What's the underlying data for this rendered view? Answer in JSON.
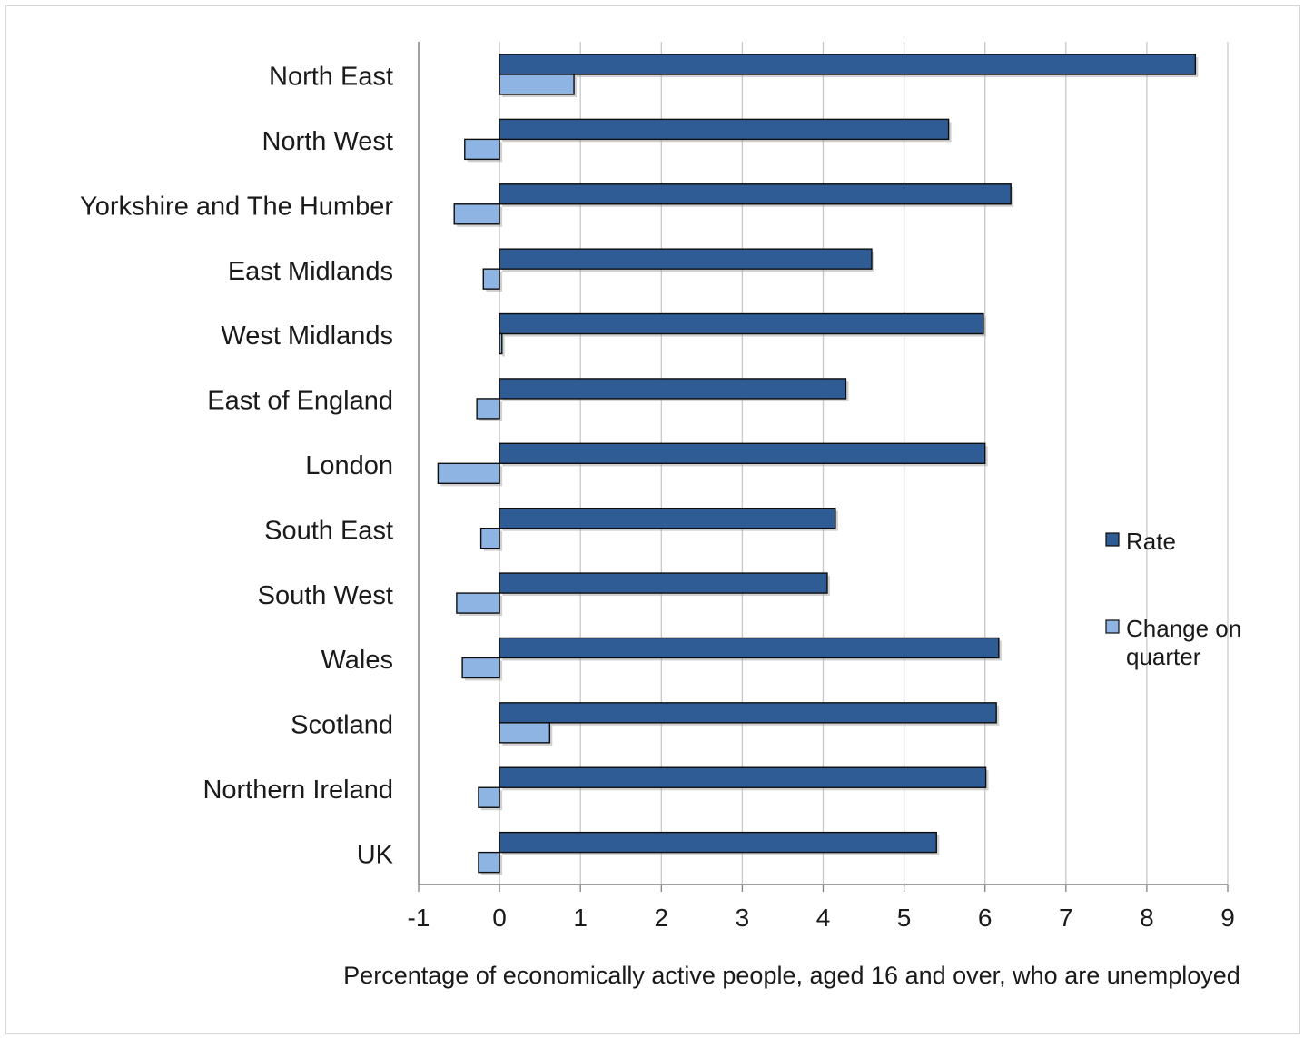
{
  "chart_data": {
    "type": "bar",
    "orientation": "horizontal",
    "categories": [
      "North East",
      "North West",
      "Yorkshire and The Humber",
      "East Midlands",
      "West Midlands",
      "East of England",
      "London",
      "South East",
      "South West",
      "Wales",
      "Scotland",
      "Northern Ireland",
      "UK"
    ],
    "series": [
      {
        "name": "Rate",
        "color": "#2f5c94",
        "values": [
          8.6,
          5.55,
          6.32,
          4.6,
          5.98,
          4.28,
          6.0,
          4.15,
          4.05,
          6.17,
          6.14,
          6.01,
          5.4
        ]
      },
      {
        "name": "Change on quarter",
        "color": "#8eb4e3",
        "values": [
          0.92,
          -0.43,
          -0.56,
          -0.2,
          0.03,
          -0.28,
          -0.76,
          -0.23,
          -0.53,
          -0.46,
          0.62,
          -0.26,
          -0.26
        ]
      }
    ],
    "xlim": [
      -1,
      9
    ],
    "xticks": [
      "-1",
      "0",
      "1",
      "2",
      "3",
      "4",
      "5",
      "6",
      "7",
      "8",
      "9"
    ],
    "xlabel": "Percentage of economically active people, aged 16 and over, who are unemployed",
    "grid": "vertical",
    "legend": {
      "position": "right",
      "entries": [
        {
          "lines": [
            "Rate"
          ]
        },
        {
          "lines": [
            "Change on",
            "quarter"
          ]
        }
      ]
    }
  }
}
